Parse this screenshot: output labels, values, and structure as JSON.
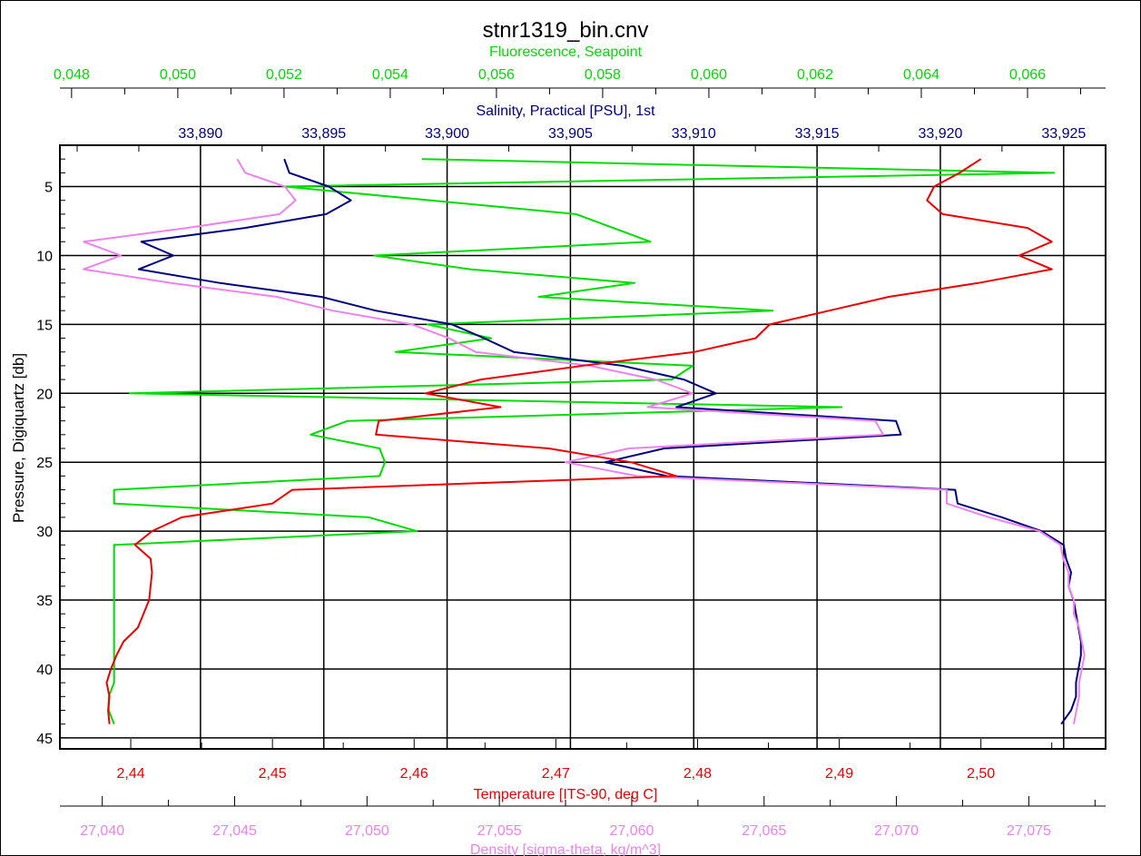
{
  "chart_data": {
    "type": "line",
    "title": "stnr1319_bin.cnv",
    "y_axis": {
      "label": "Pressure, Digiquartz [db]",
      "range": [
        2,
        45.8
      ],
      "inverted": true,
      "ticks": [
        5,
        10,
        15,
        20,
        25,
        30,
        35,
        40,
        45
      ]
    },
    "x_axes": [
      {
        "id": "fluorescence",
        "label": "Fluorescence, Seapoint",
        "color": "#00dd00",
        "position": "top-outer",
        "range": [
          0.04778,
          0.06747
        ],
        "ticks": [
          "0,048",
          "0,050",
          "0,052",
          "0,054",
          "0,056",
          "0,058",
          "0,060",
          "0,062",
          "0,064",
          "0,066"
        ]
      },
      {
        "id": "salinity",
        "label": "Salinity, Practical [PSU], 1st",
        "color": "#000080",
        "position": "top-inner",
        "range": [
          33.8843,
          33.9267
        ],
        "ticks": [
          "33,890",
          "33,895",
          "33,900",
          "33,905",
          "33,910",
          "33,915",
          "33,920",
          "33,925"
        ]
      },
      {
        "id": "temperature",
        "label": "Temperature [ITS-90, deg C]",
        "color": "#ee0000",
        "position": "bottom-inner",
        "range": [
          2.435,
          2.5088
        ],
        "ticks": [
          "2,44",
          "2,45",
          "2,46",
          "2,47",
          "2,48",
          "2,49",
          "2,50"
        ]
      },
      {
        "id": "density",
        "label": "Density [sigma-theta, kg/m^3]",
        "color": "#ee82ee",
        "position": "bottom-outer",
        "range": [
          27.0384,
          27.0779
        ],
        "ticks": [
          "27,040",
          "27,045",
          "27,050",
          "27,055",
          "27,060",
          "27,065",
          "27,070",
          "27,075"
        ]
      }
    ],
    "grid": true,
    "series": [
      {
        "name": "Fluorescence, Seapoint",
        "axis": "fluorescence",
        "color": "#00dd00",
        "pressure": [
          3,
          4,
          5,
          7,
          9,
          10,
          11,
          12,
          13,
          14,
          15,
          16,
          17,
          18,
          19,
          20,
          21,
          22,
          23,
          24,
          25,
          26,
          27,
          28,
          29,
          30,
          31,
          32,
          33,
          34,
          35,
          36,
          37,
          38,
          39,
          40,
          41,
          42,
          43,
          44
        ],
        "values": [
          0.0546,
          0.0665,
          0.052,
          0.0575,
          0.0589,
          0.0537,
          0.0555,
          0.0586,
          0.0568,
          0.0612,
          0.0547,
          0.0559,
          0.0541,
          0.0597,
          0.0593,
          0.0491,
          0.0625,
          0.0532,
          0.0525,
          0.0538,
          0.0539,
          0.0538,
          0.0488,
          0.0488,
          0.0536,
          0.0545,
          0.0488,
          0.0488,
          0.0488,
          0.0488,
          0.0488,
          0.0488,
          0.0488,
          0.0488,
          0.0488,
          0.0488,
          0.0488,
          0.0487,
          0.0487,
          0.0488
        ]
      },
      {
        "name": "Salinity, Practical [PSU], 1st",
        "axis": "salinity",
        "color": "#000080",
        "pressure": [
          3,
          4,
          5,
          6,
          7,
          8,
          9,
          10,
          11,
          12,
          13,
          14,
          15,
          16,
          17,
          18,
          19,
          20,
          21,
          22,
          23,
          24,
          25,
          26,
          27,
          28,
          29,
          30,
          31,
          32,
          33,
          34,
          35,
          36,
          37,
          38,
          39,
          40,
          41,
          42,
          43,
          44
        ],
        "values": [
          33.8934,
          33.8936,
          33.8952,
          33.8961,
          33.8951,
          33.8918,
          33.8876,
          33.8889,
          33.8875,
          33.8908,
          33.8949,
          33.8971,
          33.9002,
          33.9015,
          33.9027,
          33.9071,
          33.9096,
          33.9109,
          33.9093,
          33.9182,
          33.9184,
          33.9088,
          33.9064,
          33.9089,
          33.9206,
          33.9207,
          33.9225,
          33.9241,
          33.925,
          33.9251,
          33.9253,
          33.9252,
          33.9254,
          33.9255,
          33.9256,
          33.9257,
          33.9257,
          33.9256,
          33.9255,
          33.9255,
          33.9253,
          33.9249
        ]
      },
      {
        "name": "Density [sigma-theta, kg/m^3]",
        "axis": "density",
        "color": "#ee82ee",
        "pressure": [
          3,
          4,
          5,
          6,
          7,
          8,
          9,
          10,
          11,
          12,
          13,
          14,
          15,
          16,
          17,
          18,
          19,
          20,
          21,
          22,
          23,
          24,
          25,
          26,
          27,
          28,
          29,
          30,
          31,
          32,
          33,
          34,
          35,
          36,
          37,
          38,
          39,
          40,
          41,
          42,
          43,
          44
        ],
        "values": [
          27.0451,
          27.0454,
          27.0469,
          27.0473,
          27.0467,
          27.0432,
          27.0393,
          27.0407,
          27.0393,
          27.0426,
          27.0466,
          27.0487,
          27.0517,
          27.0531,
          27.0541,
          27.0584,
          27.0609,
          27.0623,
          27.0606,
          27.0692,
          27.0695,
          27.0599,
          27.0575,
          27.0602,
          27.0719,
          27.0719,
          27.0735,
          27.0754,
          27.0762,
          27.0763,
          27.0765,
          27.0765,
          27.0767,
          27.0767,
          27.0769,
          27.077,
          27.0771,
          27.077,
          27.0769,
          27.0769,
          27.0768,
          27.0767
        ]
      },
      {
        "name": "Temperature [ITS-90, deg C]",
        "axis": "temperature",
        "color": "#ee0000",
        "pressure": [
          3,
          4,
          5,
          6,
          7,
          8,
          9,
          10,
          11,
          12,
          13,
          14,
          15,
          16,
          17,
          18,
          19,
          20,
          21,
          22,
          23,
          24,
          25,
          26,
          27,
          28,
          29,
          30,
          31,
          32,
          33,
          34,
          35,
          36,
          37,
          38,
          39,
          40,
          41,
          42,
          43,
          44
        ],
        "values": [
          2.5,
          2.4985,
          2.4967,
          2.4962,
          2.4973,
          2.5033,
          2.505,
          2.5027,
          2.505,
          2.4998,
          2.4935,
          2.4893,
          2.4851,
          2.4841,
          2.4798,
          2.4719,
          2.4647,
          2.4608,
          2.4661,
          2.4575,
          2.4573,
          2.4695,
          2.4753,
          2.4785,
          2.4514,
          2.45,
          2.4436,
          2.4415,
          2.4403,
          2.4414,
          2.4415,
          2.4414,
          2.4413,
          2.4409,
          2.4405,
          2.4395,
          2.439,
          2.4386,
          2.4383,
          2.4385,
          2.4384,
          2.4385
        ]
      }
    ]
  }
}
